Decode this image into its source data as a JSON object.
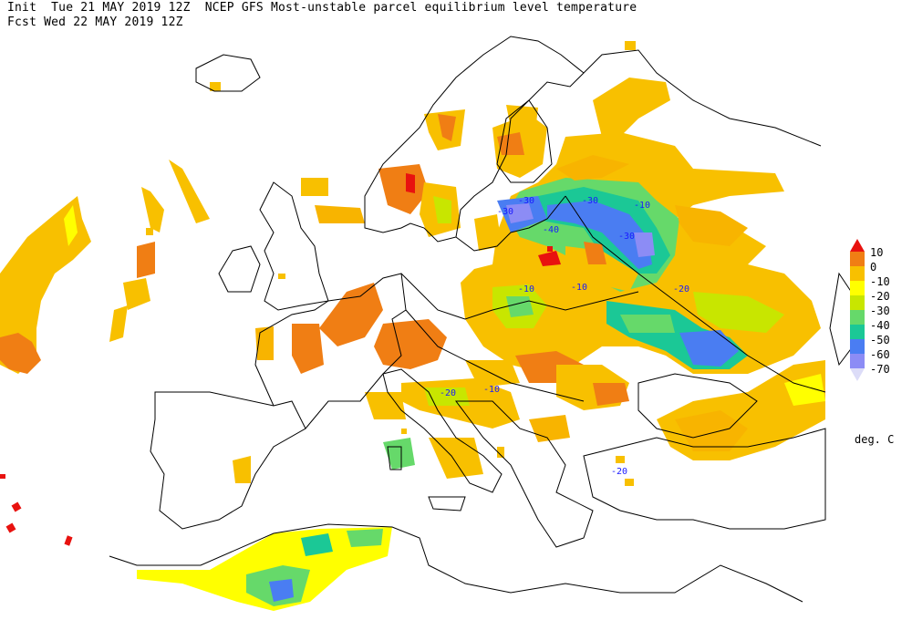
{
  "header": {
    "line1": "Init  Tue 21 MAY 2019 12Z  NCEP GFS Most-unstable parcel equilibrium level temperature",
    "line2": "Fcst Wed 22 MAY 2019 12Z"
  },
  "legend": {
    "levels": [
      {
        "label": "10",
        "color": "#e8120f"
      },
      {
        "label": "0",
        "color": "#f07e14"
      },
      {
        "label": "-10",
        "color": "#f8c000"
      },
      {
        "label": "-20",
        "color": "#c8e600"
      },
      {
        "label": "-30",
        "color": "#66d96a"
      },
      {
        "label": "-40",
        "color": "#1bc896"
      },
      {
        "label": "-50",
        "color": "#4a7df2"
      },
      {
        "label": "-60",
        "color": "#8c8cf5"
      },
      {
        "label": "-70",
        "color": "#c8c8f8"
      }
    ],
    "unit": "deg. C"
  },
  "contour_labels": [
    {
      "text": "-30"
    },
    {
      "text": "-30"
    },
    {
      "text": "-10"
    },
    {
      "text": "-30"
    },
    {
      "text": "-30"
    },
    {
      "text": "-40"
    },
    {
      "text": "-20"
    },
    {
      "text": "-10"
    },
    {
      "text": "-10"
    },
    {
      "text": "-20"
    },
    {
      "text": "-20"
    },
    {
      "text": "-10"
    }
  ],
  "colors": {
    "orange": "#f07e14",
    "amber": "#f8b400",
    "yellow": "#ffff00",
    "lime": "#c8e600",
    "green": "#36d36a",
    "teal": "#1bc896",
    "blue": "#4a7df2",
    "lavender": "#8c8cf5",
    "coast": "#000000"
  }
}
